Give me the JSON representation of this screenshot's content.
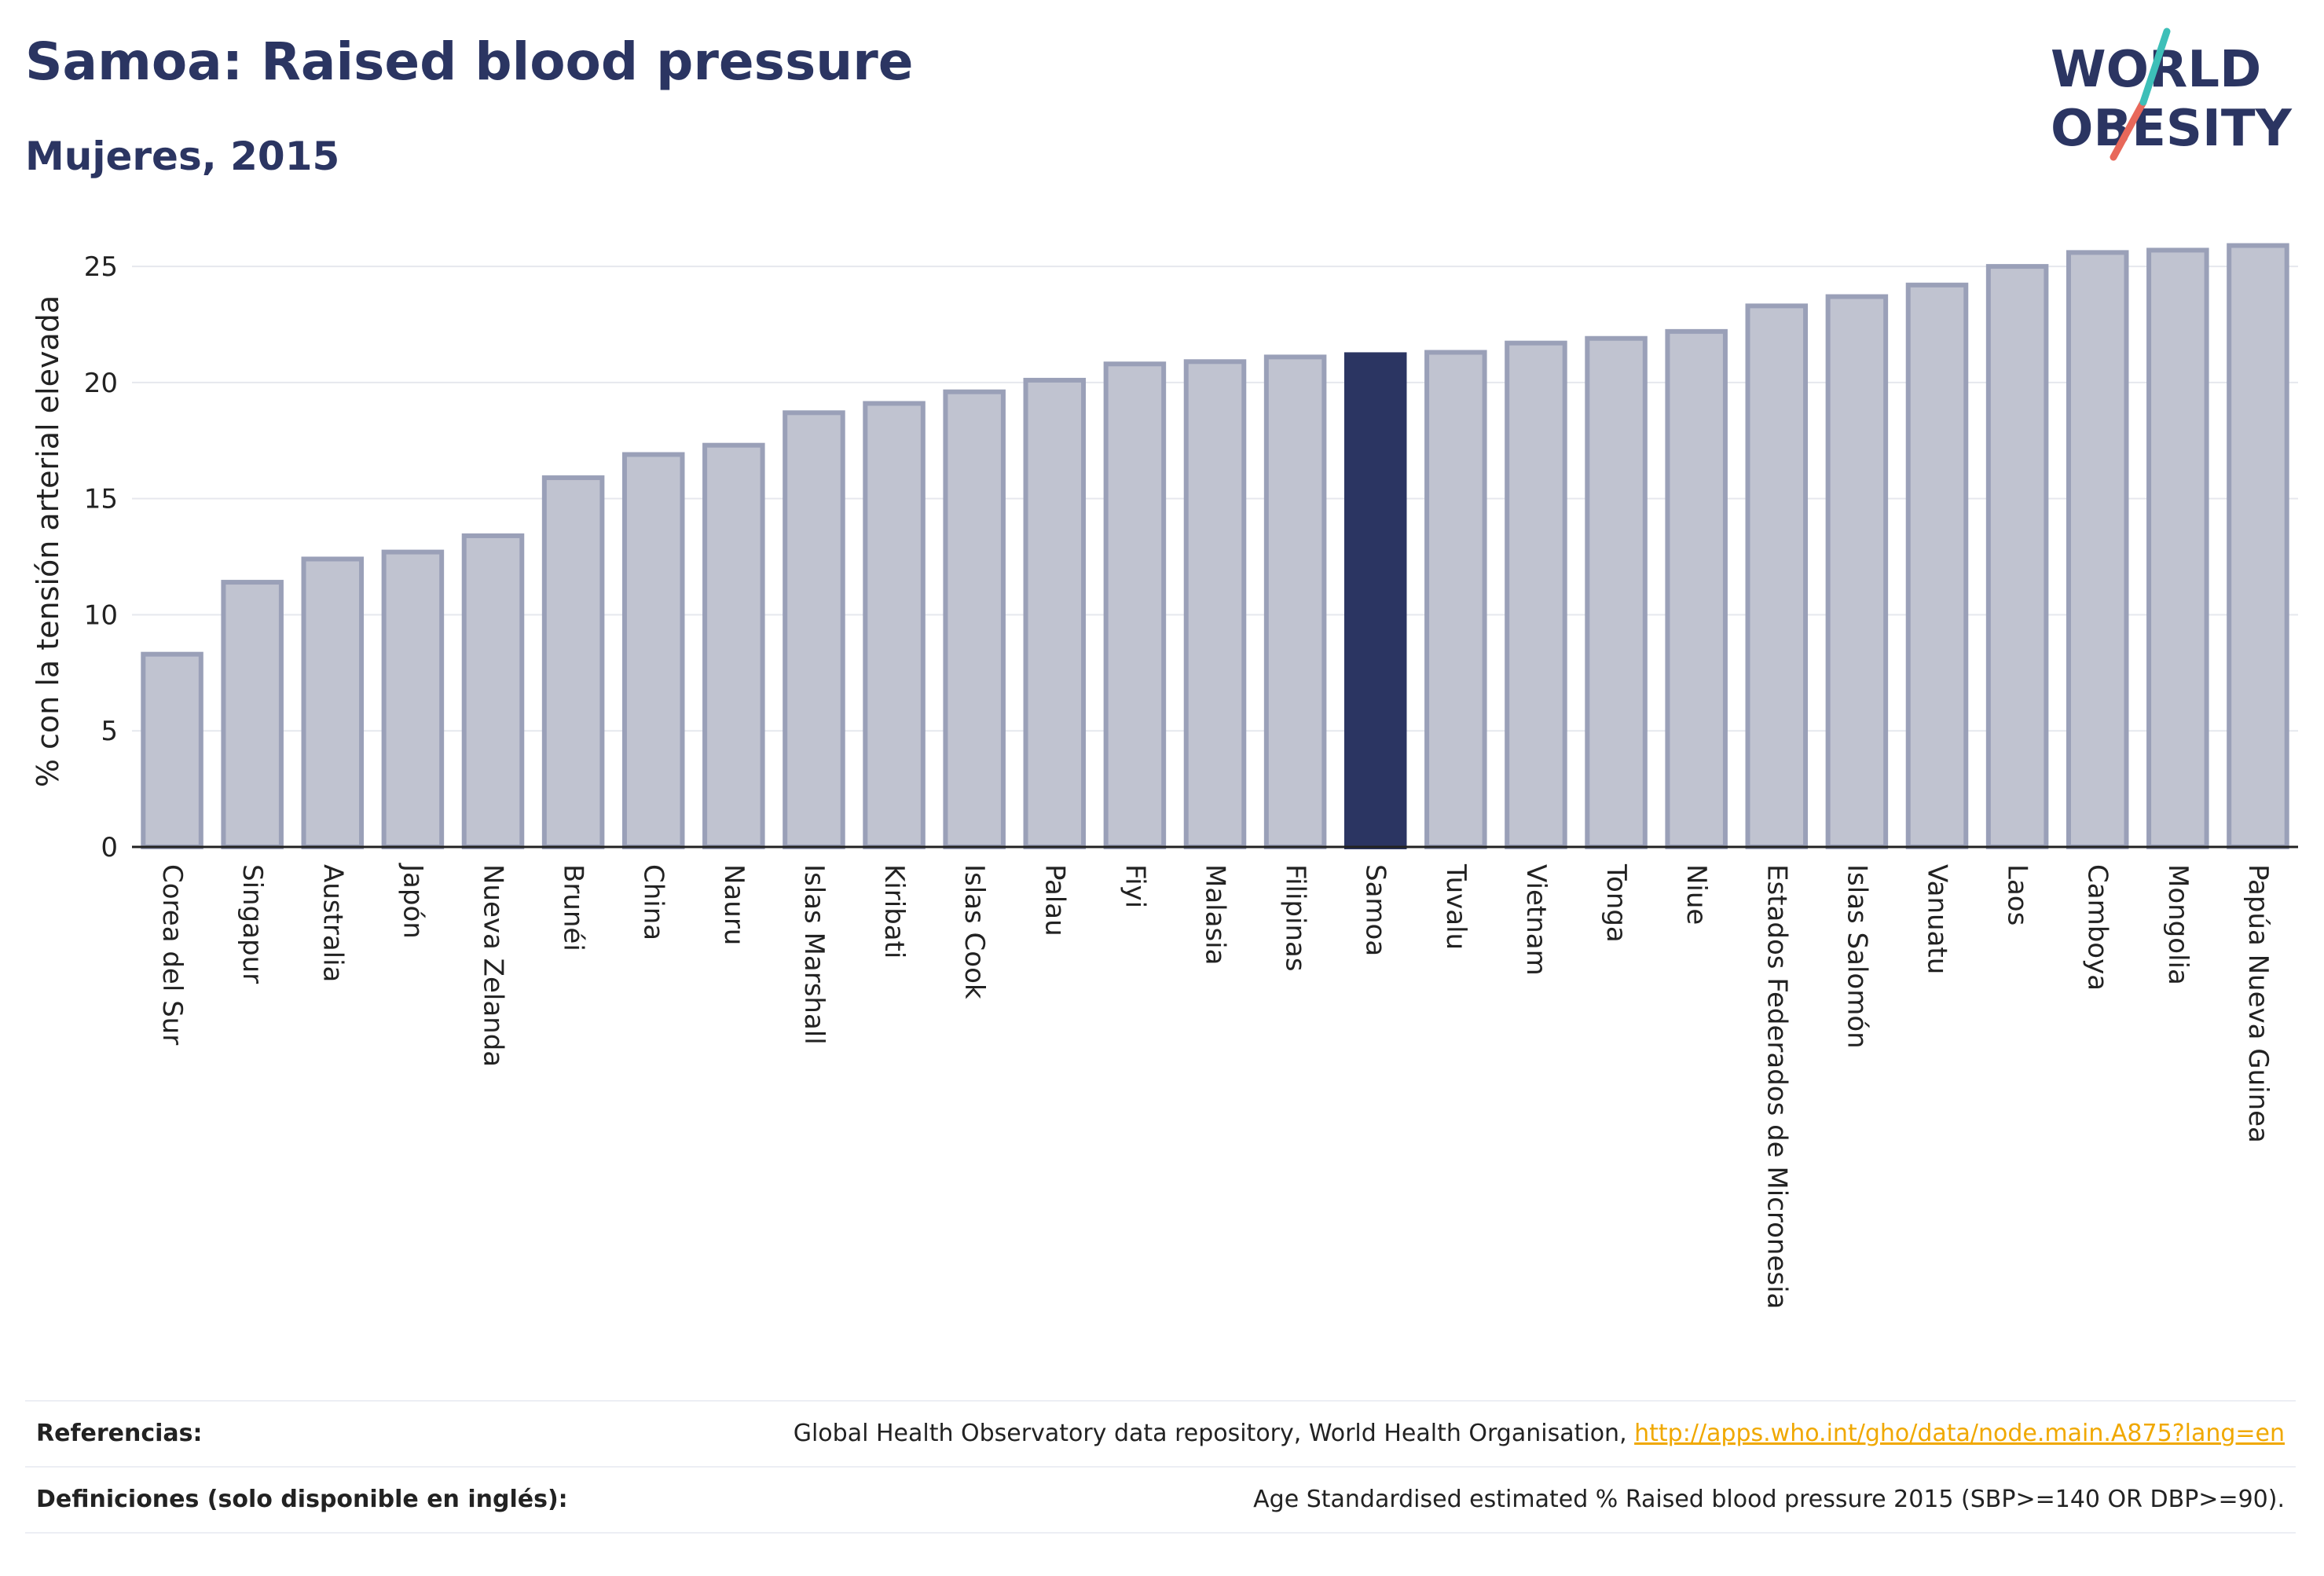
{
  "header": {
    "title": "Samoa: Raised blood pressure",
    "subtitle": "Mujeres, 2015"
  },
  "logo": {
    "line1": "WORLD",
    "line2": "OBESITY"
  },
  "chart_data": {
    "type": "bar",
    "ylabel": "% con la tensión arterial elevada",
    "ylim": [
      0,
      27
    ],
    "yticks": [
      0,
      5,
      10,
      15,
      20,
      25
    ],
    "grid": true,
    "highlight": "Samoa",
    "categories": [
      "Corea del Sur",
      "Singapur",
      "Australia",
      "Japón",
      "Nueva Zelanda",
      "Brunéi",
      "China",
      "Nauru",
      "Islas Marshall",
      "Kiribati",
      "Islas Cook",
      "Palau",
      "Fiyi",
      "Malasia",
      "Filipinas",
      "Samoa",
      "Tuvalu",
      "Vietnam",
      "Tonga",
      "Niue",
      "Estados Federados de Micronesia",
      "Islas Salomón",
      "Vanuatu",
      "Laos",
      "Camboya",
      "Mongolia",
      "Papúa Nueva Guinea"
    ],
    "values": [
      8.3,
      11.4,
      12.4,
      12.7,
      13.4,
      15.9,
      16.9,
      17.3,
      18.7,
      19.1,
      19.6,
      20.1,
      20.8,
      20.9,
      21.1,
      21.2,
      21.3,
      21.7,
      21.9,
      22.2,
      23.3,
      23.7,
      24.2,
      25.0,
      25.6,
      25.7,
      25.9
    ],
    "colors": {
      "bar": "#c0c3d0",
      "bar_stroke": "#9aa0b8",
      "highlight": "#2b3562",
      "grid": "#e6e8ee",
      "axis": "#222222"
    }
  },
  "footer": {
    "references_label": "Referencias:",
    "references_text": "Global Health Observatory data repository, World Health Organisation, ",
    "references_link": "http://apps.who.int/gho/data/node.main.A875?lang=en",
    "definitions_label": "Definiciones (solo disponible en inglés):",
    "definitions_text": "Age Standardised estimated % Raised blood pressure 2015 (SBP>=140 OR DBP>=90)."
  }
}
